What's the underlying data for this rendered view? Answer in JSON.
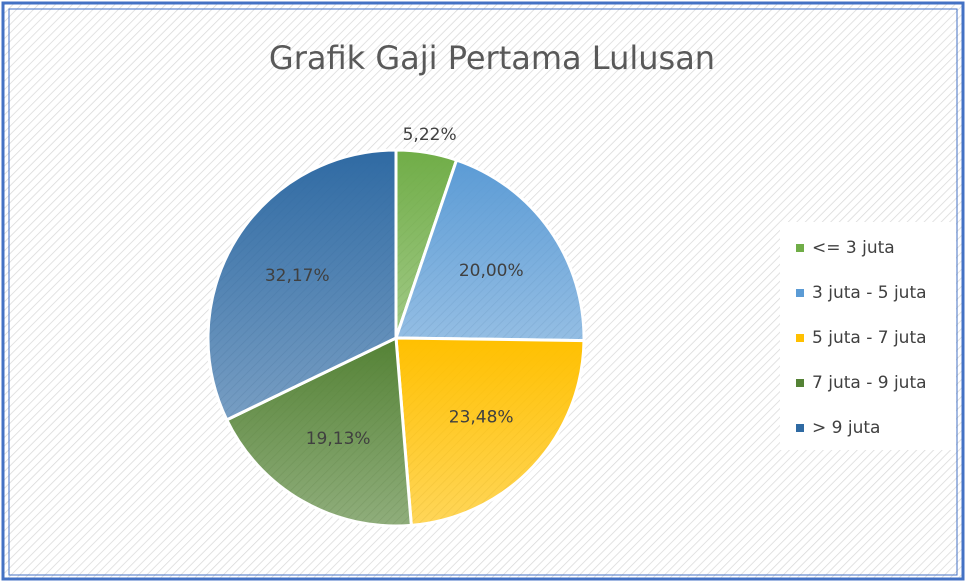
{
  "chart_data": {
    "type": "pie",
    "title": "Grafik Gaji Pertama Lulusan",
    "categories": [
      "<= 3 juta",
      "3 juta - 5 juta",
      "5 juta - 7 juta",
      "7 juta - 9 juta",
      "> 9 juta"
    ],
    "values": [
      5.22,
      20.0,
      23.48,
      19.13,
      32.17
    ],
    "value_labels": [
      "5,22%",
      "20,00%",
      "23,48%",
      "19,13%",
      "32,17%"
    ],
    "colors": [
      "#70ad47",
      "#5b9bd5",
      "#ffc000",
      "#548235",
      "#2f6aa3"
    ],
    "legend": "right"
  }
}
